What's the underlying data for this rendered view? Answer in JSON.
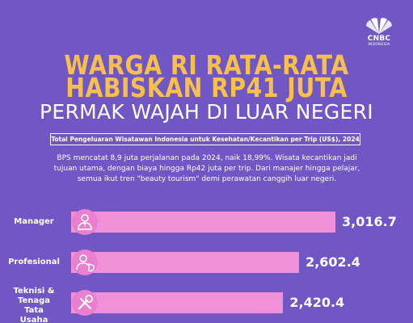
{
  "brand": {
    "logo_text": "CNBC",
    "logo_sub": "INDONESIA"
  },
  "headline": {
    "line1": "WARGA RI RATA-RATA",
    "line2": "HABISKAN RP41 JUTA",
    "line3": "PERMAK WAJAH DI LUAR NEGERI"
  },
  "chart_caption": "Total Pengeluaran Wisatawan Indonesia untuk Kesehatan/Kecantikan per Trip (US$), 2024",
  "description": "BPS mencatat 8,9 juta perjalanan pada 2024, naik 18,99%. Wisata kecantikan jadi tujuan utama, dengan biaya hingga Rp42 juta per trip. Dari manajer hingga pelajar, semua ikut tren \"beauty tourism\" demi perawatan canggih luar negeri.",
  "colors": {
    "background": "#7057c4",
    "title": "#f6c04b",
    "bar": "#f090d9",
    "icon_bg": "#ea7fcf"
  },
  "chart_data": {
    "type": "bar",
    "orientation": "horizontal",
    "categories": [
      "Manager",
      "Profesional",
      "Teknisi & Tenaga Tata Usaha"
    ],
    "category_lines": [
      [
        "Manager"
      ],
      [
        "Profesional"
      ],
      [
        "Teknisi &",
        "Tenaga",
        "Tata",
        "Usaha"
      ]
    ],
    "values": [
      3016.7,
      2602.4,
      2420.4
    ],
    "value_labels": [
      "3,016.7",
      "2,602.4",
      "2,420.4"
    ],
    "icons": [
      "manager-icon",
      "professional-icon",
      "technician-icon"
    ],
    "title": "Total Pengeluaran Wisatawan Indonesia untuk Kesehatan/Kecantikan per Trip (US$), 2024",
    "xlabel": "",
    "ylabel": "",
    "xlim": [
      0,
      3016.7
    ],
    "grid": false,
    "legend": "none"
  }
}
